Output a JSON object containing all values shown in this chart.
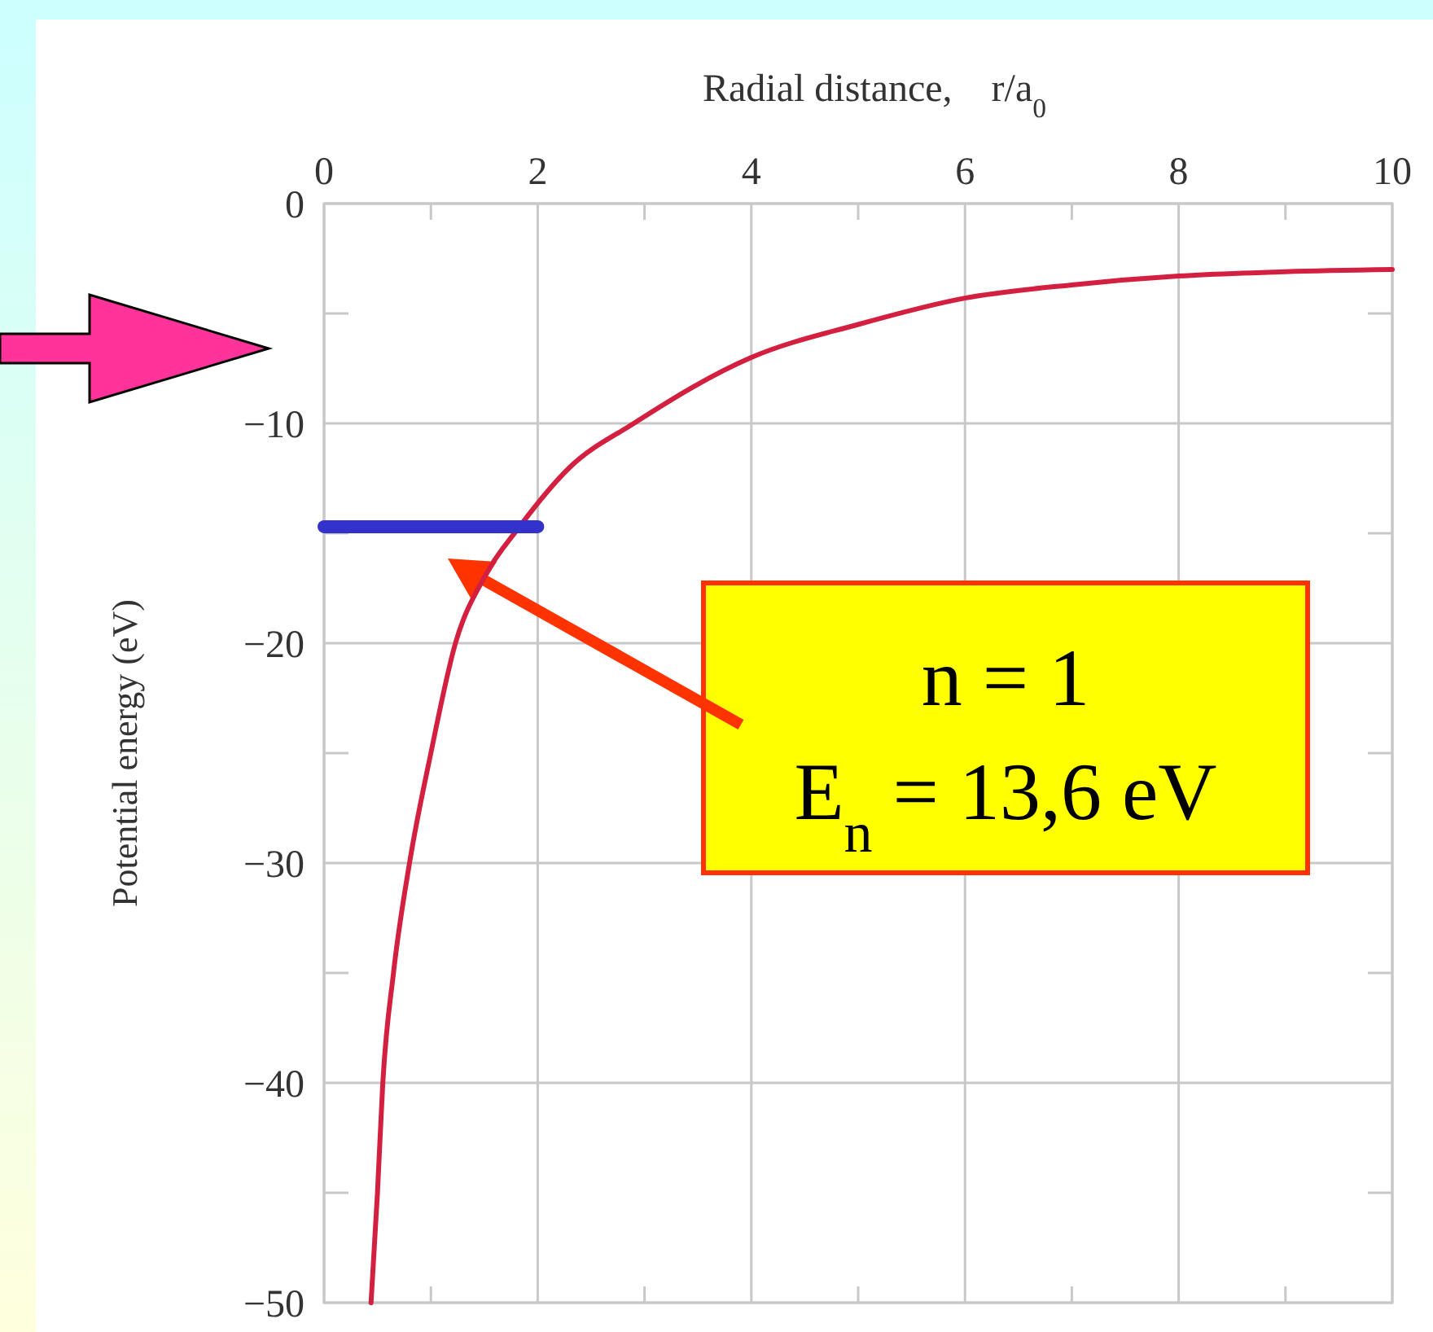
{
  "chart_data": {
    "type": "line",
    "xlabel": "Radial distance,    r/a$_{0}$",
    "ylabel": "Potential energy (eV)",
    "xlim": [
      0,
      10
    ],
    "ylim": [
      -50,
      0
    ],
    "xticks": [
      0,
      {
        "value": 1,
        "label": null
      },
      2,
      {
        "value": 3,
        "label": null
      },
      4,
      {
        "value": 5,
        "label": null
      },
      6,
      {
        "value": 7,
        "label": null
      },
      8,
      {
        "value": 9,
        "label": null
      },
      10
    ],
    "yticks": [
      0,
      {
        "value": -5,
        "label": null
      },
      {
        "value": -10,
        "label": "−10"
      },
      {
        "value": -15,
        "label": null
      },
      {
        "value": -20,
        "label": "−20"
      },
      {
        "value": -25,
        "label": null
      },
      {
        "value": -30,
        "label": "−30"
      },
      {
        "value": -35,
        "label": null
      },
      {
        "value": -40,
        "label": "−40"
      },
      {
        "value": -45,
        "label": null
      },
      {
        "value": -50,
        "label": "−50"
      }
    ],
    "grid": true,
    "marker": "none",
    "line_style": "solid",
    "series": [
      {
        "color": "#d42040",
        "x": [
          0.44,
          0.5,
          0.55,
          0.65,
          0.8,
          1.0,
          1.23,
          1.5,
          1.83,
          2.3,
          2.9,
          4,
          5,
          6,
          7,
          8,
          9,
          10
        ],
        "values": [
          -50,
          -45,
          -40,
          -35,
          -30,
          -25,
          -20,
          -17,
          -14.7,
          -12,
          -10,
          -7,
          -5.5,
          -4.3,
          -3.7,
          -3.3,
          -3.1,
          -3.0
        ]
      },
      {
        "color": "#3333cc",
        "x": [
          0,
          2
        ],
        "values": [
          -14.7,
          -14.7
        ]
      }
    ],
    "annotations": [
      "n = 1\nE$_{n}$ = 13,6 eV"
    ]
  }
}
